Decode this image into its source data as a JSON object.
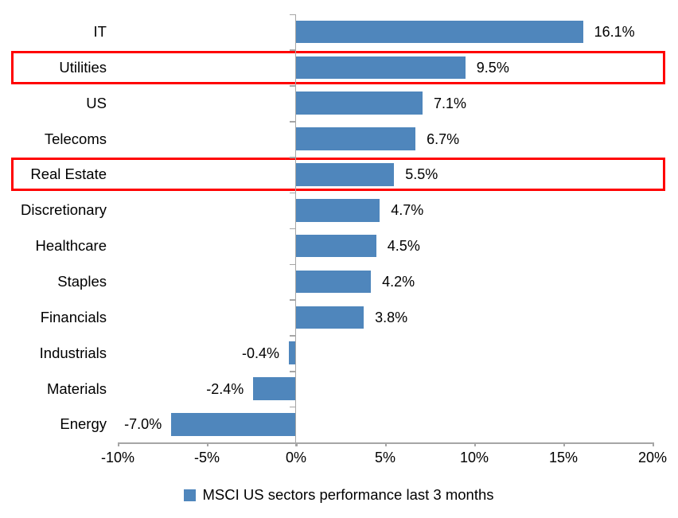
{
  "chart_data": {
    "type": "bar",
    "orientation": "horizontal",
    "title": "",
    "legend_label": "MSCI US sectors performance last 3 months",
    "legend_position": "bottom-center",
    "grid": false,
    "categories": [
      "IT",
      "Utilities",
      "US",
      "Telecoms",
      "Real Estate",
      "Discretionary",
      "Healthcare",
      "Staples",
      "Financials",
      "Industrials",
      "Materials",
      "Energy"
    ],
    "values": [
      16.1,
      9.5,
      7.1,
      6.7,
      5.5,
      4.7,
      4.5,
      4.2,
      3.8,
      -0.4,
      -2.4,
      -7.0
    ],
    "value_labels": [
      "16.1%",
      "9.5%",
      "7.1%",
      "6.7%",
      "5.5%",
      "4.7%",
      "4.5%",
      "4.2%",
      "3.8%",
      "-0.4%",
      "-2.4%",
      "-7.0%"
    ],
    "highlighted_categories": [
      "Utilities",
      "Real Estate"
    ],
    "xlim": [
      -10,
      20
    ],
    "x_ticks": [
      {
        "value": -10,
        "label": "-10%"
      },
      {
        "value": -5,
        "label": "-5%"
      },
      {
        "value": 0,
        "label": "0%"
      },
      {
        "value": 5,
        "label": "5%"
      },
      {
        "value": 10,
        "label": "10%"
      },
      {
        "value": 15,
        "label": "15%"
      },
      {
        "value": 20,
        "label": "20%"
      }
    ],
    "colors": {
      "bar": "#4f86bc",
      "highlight_border": "#ff0000",
      "axis": "#a6a6a6",
      "text": "#000000",
      "background": "#ffffff"
    }
  }
}
